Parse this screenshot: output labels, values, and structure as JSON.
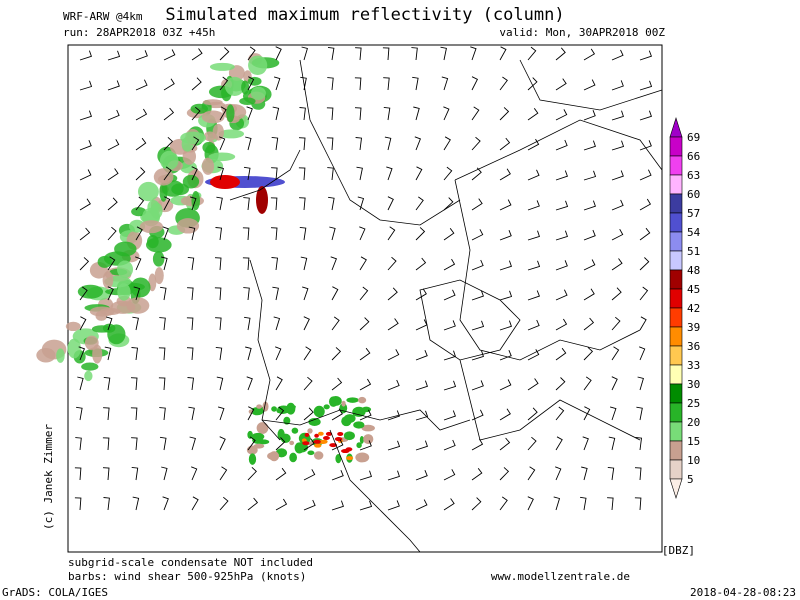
{
  "header": {
    "model": "WRF-ARW @4km",
    "title": "Simulated maximum reflectivity (column)",
    "run": "run: 28APR2018 03Z +45h",
    "valid": "valid: Mon, 30APR2018 00Z"
  },
  "colorbar": {
    "unit": "[DBZ]",
    "labels": [
      69,
      66,
      63,
      60,
      57,
      54,
      51,
      48,
      45,
      42,
      39,
      36,
      33,
      30,
      25,
      20,
      15,
      10,
      5
    ],
    "colors": [
      "#a000c8",
      "#c800c8",
      "#f040f0",
      "#ffb4ff",
      "#3c3ca0",
      "#5050d0",
      "#8c8cf0",
      "#c8c8ff",
      "#a00000",
      "#e00000",
      "#ff3c00",
      "#ff8c00",
      "#ffc850",
      "#ffffb4",
      "#008c00",
      "#28b428",
      "#78dc78",
      "#c8a090",
      "#e6d2c8",
      "#fbeee6"
    ]
  },
  "copyright": "(c) Janek Zimmer",
  "footer": {
    "note": "subgrid-scale condensate NOT included",
    "barbs": "barbs: wind shear 500-925hPa (knots)",
    "website": "www.modellzentrale.de",
    "software": "GrADS: COLA/IGES",
    "timestamp": "2018-04-28-08:23"
  }
}
